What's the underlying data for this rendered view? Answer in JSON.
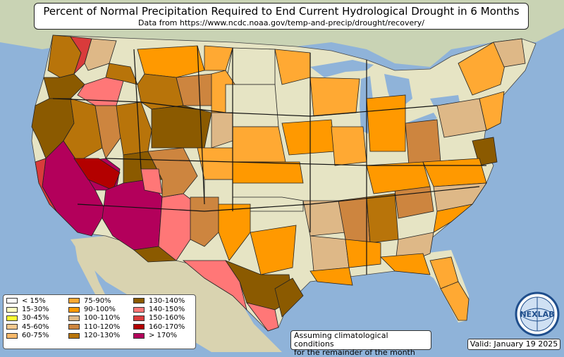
{
  "title": "Percent of Normal Precipitation Required to End Current Hydrological Drought in 6 Months",
  "subtitle": "Data from https://www.ncdc.noaa.gov/temp-and-precip/drought/recovery/",
  "note_line1": "Assuming climatological conditions",
  "note_line2": "for the remainder of the month",
  "valid": "Valid: January 19 2025",
  "logo_text": "NEXLAB",
  "colors": {
    "ocean": "#8fb3d9",
    "land": "#e6e4c4",
    "lt15": "#ffffff",
    "15_30": "#ffffc0",
    "30_45": "#ffff33",
    "45_60": "#f5c98f",
    "60_75": "#f7b96b",
    "75_90": "#ffa933",
    "90_100": "#ff9900",
    "100_110": "#deb887",
    "110_120": "#cd853f",
    "120_130": "#b8740a",
    "130_140": "#8b5a00",
    "140_150": "#ff7777",
    "150_160": "#d93b3b",
    "160_170": "#b30000",
    "gt170": "#b3005b"
  },
  "legend": [
    {
      "label": "< 15%",
      "color": "#ffffff"
    },
    {
      "label": "15-30%",
      "color": "#ffffc0"
    },
    {
      "label": "30-45%",
      "color": "#ffff33"
    },
    {
      "label": "45-60%",
      "color": "#f5c98f"
    },
    {
      "label": "60-75%",
      "color": "#f7b96b"
    },
    {
      "label": "75-90%",
      "color": "#ffa933"
    },
    {
      "label": "90-100%",
      "color": "#ff9900"
    },
    {
      "label": "100-110%",
      "color": "#deb887"
    },
    {
      "label": "110-120%",
      "color": "#cd853f"
    },
    {
      "label": "120-130%",
      "color": "#b8740a"
    },
    {
      "label": "130-140%",
      "color": "#8b5a00"
    },
    {
      "label": "140-150%",
      "color": "#ff7777"
    },
    {
      "label": "150-160%",
      "color": "#d93b3b"
    },
    {
      "label": "160-170%",
      "color": "#b30000"
    },
    {
      "label": "> 170%",
      "color": "#b3005b"
    }
  ]
}
